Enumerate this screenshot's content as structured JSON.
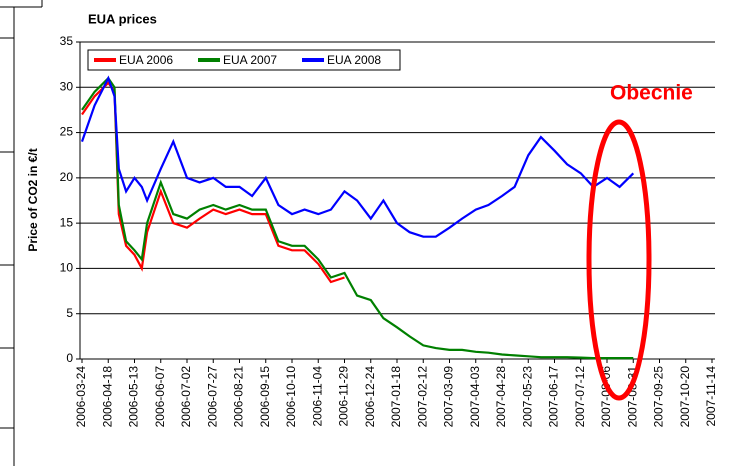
{
  "chart_data": {
    "type": "line",
    "title": "EUA prices",
    "y_label": "Price of CO2 in €/t",
    "annotation": "Obecnie",
    "x": [
      "2006-03-24",
      "2006-04-05",
      "2006-04-18",
      "2006-04-24",
      "2006-04-28",
      "2006-05-05",
      "2006-05-13",
      "2006-05-20",
      "2006-05-25",
      "2006-06-07",
      "2006-06-19",
      "2006-07-02",
      "2006-07-14",
      "2006-07-27",
      "2006-08-08",
      "2006-08-21",
      "2006-09-02",
      "2006-09-15",
      "2006-09-27",
      "2006-10-10",
      "2006-10-22",
      "2006-11-04",
      "2006-11-16",
      "2006-11-29",
      "2006-12-11",
      "2006-12-24",
      "2007-01-05",
      "2007-01-18",
      "2007-01-30",
      "2007-02-12",
      "2007-02-24",
      "2007-03-09",
      "2007-03-21",
      "2007-04-03",
      "2007-04-15",
      "2007-04-28",
      "2007-05-10",
      "2007-05-23",
      "2007-06-04",
      "2007-06-17",
      "2007-06-29",
      "2007-07-12",
      "2007-07-24",
      "2007-08-06",
      "2007-08-18",
      "2007-08-31"
    ],
    "series": [
      {
        "name": "EUA 2006",
        "color": "#ff0000",
        "values": [
          27,
          29,
          30.5,
          29.5,
          16,
          12.5,
          11.5,
          10,
          14,
          18.5,
          15,
          14.5,
          15.5,
          16.5,
          16,
          16.5,
          16,
          16,
          12.5,
          12,
          12,
          10.5,
          8.5,
          9,
          null,
          null,
          null,
          null,
          null,
          null,
          null,
          null,
          null,
          null,
          null,
          null,
          null,
          null,
          null,
          null,
          null,
          null,
          null,
          null,
          null,
          null
        ]
      },
      {
        "name": "EUA 2007",
        "color": "#008000",
        "values": [
          27.5,
          29.5,
          31,
          30,
          17,
          13,
          12,
          11,
          15,
          19.5,
          16,
          15.5,
          16.5,
          17,
          16.5,
          17,
          16.5,
          16.5,
          13,
          12.5,
          12.5,
          11,
          9,
          9.5,
          7,
          6.5,
          4.5,
          3.5,
          2.5,
          1.5,
          1.2,
          1,
          1,
          0.8,
          0.7,
          0.5,
          0.4,
          0.3,
          0.2,
          0.2,
          0.2,
          0.15,
          0.1,
          0.1,
          0.1,
          0.1
        ]
      },
      {
        "name": "EUA 2008",
        "color": "#0000ff",
        "values": [
          24,
          28,
          31,
          29,
          21,
          18.5,
          20,
          19,
          17.5,
          21,
          24,
          20,
          19.5,
          20,
          19,
          19,
          18,
          20,
          17,
          16,
          16.5,
          16,
          16.5,
          18.5,
          17.5,
          15.5,
          17.5,
          15,
          14,
          13.5,
          13.5,
          14.5,
          15.5,
          16.5,
          17,
          18,
          19,
          22.5,
          24.5,
          23,
          21.5,
          20.5,
          19,
          20,
          19,
          20.5
        ]
      }
    ],
    "xlim": [
      "2006-03-24",
      "2007-11-14"
    ],
    "xticks": [
      "2006-03-24",
      "2006-04-18",
      "2006-05-13",
      "2006-06-07",
      "2006-07-02",
      "2006-07-27",
      "2006-08-21",
      "2006-09-15",
      "2006-10-10",
      "2006-11-04",
      "2006-11-29",
      "2006-12-24",
      "2007-01-18",
      "2007-02-12",
      "2007-03-09",
      "2007-04-03",
      "2007-04-28",
      "2007-05-23",
      "2007-06-17",
      "2007-07-12",
      "2007-08-06",
      "2007-08-31",
      "2007-09-25",
      "2007-10-20",
      "2007-11-14"
    ],
    "ylim": [
      0,
      35
    ],
    "yticks": [
      0,
      5,
      10,
      15,
      20,
      25,
      30,
      35
    ],
    "grid": true,
    "legend": "top-left"
  }
}
